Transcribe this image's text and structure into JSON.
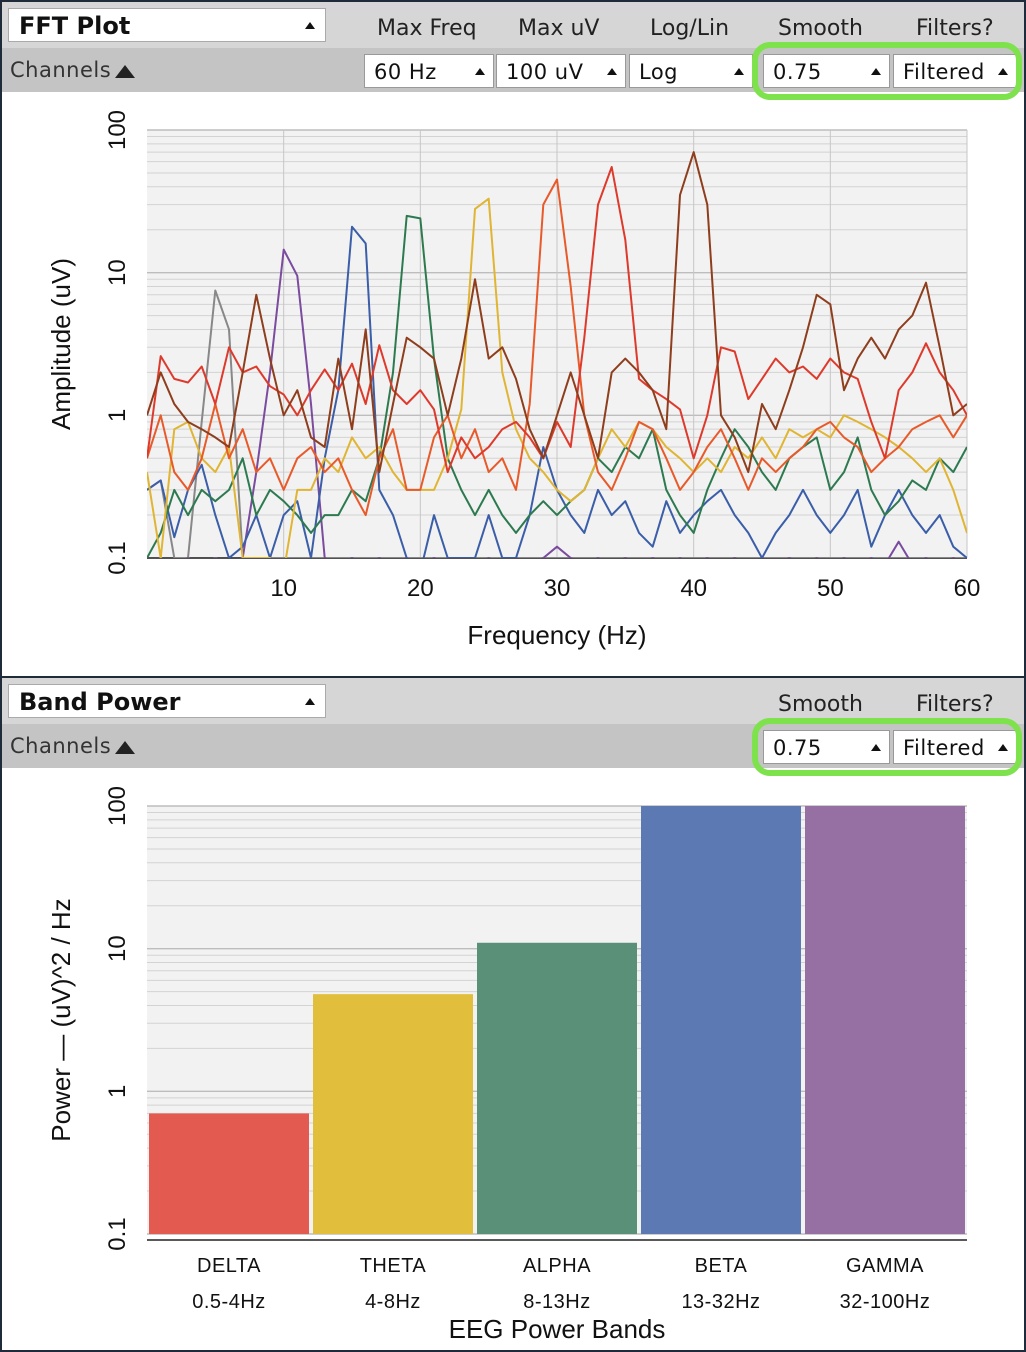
{
  "fft": {
    "widget_title": "FFT Plot",
    "channels_label": "Channels",
    "headers": {
      "max_freq": "Max Freq",
      "max_uv": "Max uV",
      "log_lin": "Log/Lin",
      "smooth": "Smooth",
      "filters": "Filters?"
    },
    "dropdowns": {
      "max_freq": "60 Hz",
      "max_uv": "100 uV",
      "log_lin": "Log",
      "smooth": "0.75",
      "filters": "Filtered"
    }
  },
  "band": {
    "widget_title": "Band Power",
    "channels_label": "Channels",
    "headers": {
      "smooth": "Smooth",
      "filters": "Filters?"
    },
    "dropdowns": {
      "smooth": "0.75",
      "filters": "Filtered"
    }
  },
  "colors": {
    "highlight": "#7ee24c",
    "plot_bg": "#f2f2f2",
    "titlebar": "#d6d6d6",
    "toolbar": "#c4c4c4"
  },
  "chart_data": [
    {
      "type": "line",
      "xlabel": "Frequency (Hz)",
      "ylabel": "Amplitude (uV)",
      "xlim": [
        0,
        60
      ],
      "ylim": [
        0.1,
        100
      ],
      "y_scale": "log",
      "grid": true,
      "x_ticks": [
        10,
        20,
        30,
        40,
        50,
        60
      ],
      "y_ticks": [
        0.1,
        1,
        10,
        100
      ],
      "y_tick_labels": [
        "0.1",
        "1",
        "10",
        "100"
      ],
      "x": [
        0,
        1,
        2,
        3,
        4,
        5,
        6,
        7,
        8,
        9,
        10,
        11,
        12,
        13,
        14,
        15,
        16,
        17,
        18,
        19,
        20,
        21,
        22,
        23,
        24,
        25,
        26,
        27,
        28,
        29,
        30,
        31,
        32,
        33,
        34,
        35,
        36,
        37,
        38,
        39,
        40,
        41,
        42,
        43,
        44,
        45,
        46,
        47,
        48,
        49,
        50,
        51,
        52,
        53,
        54,
        55,
        56,
        57,
        58,
        59,
        60
      ],
      "series": [
        {
          "color": "#888888",
          "values": [
            0.3,
            0.35,
            0.1,
            0.1,
            0.9,
            7.5,
            4.0,
            0.1,
            0.08,
            0.1,
            0.1,
            0.1,
            0.1,
            0.1,
            0.1,
            0.1,
            0.1,
            0.1,
            0.1,
            0.1,
            0.1,
            0.1,
            0.1,
            0.1,
            0.1,
            0.1,
            0.1,
            0.1,
            0.1,
            0.1,
            0.1,
            0.1,
            0.1,
            0.1,
            0.1,
            0.1,
            0.1,
            0.1,
            0.1,
            0.1,
            0.1,
            0.1,
            0.1,
            0.1,
            0.1,
            0.1,
            0.1,
            0.1,
            0.1,
            0.1,
            0.1,
            0.1,
            0.1,
            0.1,
            0.1,
            0.1,
            0.1,
            0.1,
            0.1,
            0.1,
            0.1
          ]
        },
        {
          "color": "#7b4b9e",
          "values": [
            0.09,
            0.1,
            0.09,
            0.1,
            0.09,
            0.1,
            0.09,
            0.1,
            0.4,
            2.0,
            14.5,
            9.5,
            1.2,
            0.1,
            0.09,
            0.1,
            0.09,
            0.1,
            0.09,
            0.1,
            0.09,
            0.1,
            0.09,
            0.1,
            0.09,
            0.1,
            0.09,
            0.1,
            0.09,
            0.1,
            0.12,
            0.1,
            0.09,
            0.1,
            0.09,
            0.1,
            0.09,
            0.1,
            0.09,
            0.1,
            0.09,
            0.1,
            0.09,
            0.1,
            0.09,
            0.1,
            0.09,
            0.1,
            0.09,
            0.1,
            0.09,
            0.1,
            0.09,
            0.1,
            0.09,
            0.13,
            0.09,
            0.1,
            0.09,
            0.1,
            0.09
          ]
        },
        {
          "color": "#3b5ea8",
          "values": [
            0.3,
            0.35,
            0.14,
            0.3,
            0.45,
            0.2,
            0.1,
            0.12,
            0.2,
            0.1,
            0.2,
            0.25,
            0.1,
            0.5,
            1.5,
            21.0,
            16.0,
            0.3,
            0.2,
            0.1,
            0.08,
            0.2,
            0.1,
            0.1,
            0.1,
            0.2,
            0.1,
            0.1,
            0.2,
            0.6,
            0.3,
            0.2,
            0.15,
            0.3,
            0.2,
            0.25,
            0.15,
            0.12,
            0.25,
            0.15,
            0.2,
            0.25,
            0.3,
            0.2,
            0.15,
            0.1,
            0.15,
            0.2,
            0.3,
            0.2,
            0.15,
            0.2,
            0.3,
            0.12,
            0.2,
            0.3,
            0.2,
            0.15,
            0.2,
            0.12,
            0.1
          ]
        },
        {
          "color": "#2e7a50",
          "values": [
            0.1,
            0.15,
            0.3,
            0.2,
            0.3,
            0.25,
            0.3,
            0.5,
            0.2,
            0.3,
            0.25,
            0.2,
            0.15,
            0.2,
            0.2,
            0.3,
            0.25,
            0.5,
            2.0,
            25.0,
            24.0,
            2.5,
            0.5,
            0.3,
            0.2,
            0.3,
            0.2,
            0.15,
            0.2,
            0.25,
            0.2,
            0.25,
            0.3,
            0.5,
            0.4,
            0.6,
            0.5,
            0.8,
            0.3,
            0.2,
            0.15,
            0.3,
            0.5,
            0.8,
            0.6,
            0.4,
            0.3,
            0.5,
            0.6,
            0.7,
            0.3,
            0.4,
            0.7,
            0.3,
            0.2,
            0.25,
            0.35,
            0.3,
            0.5,
            0.4,
            0.6
          ]
        },
        {
          "color": "#e0b533",
          "values": [
            0.4,
            0.1,
            0.8,
            0.9,
            0.5,
            0.4,
            0.6,
            0.1,
            0.1,
            0.1,
            0.08,
            0.3,
            0.3,
            0.5,
            0.4,
            0.7,
            0.5,
            0.6,
            0.4,
            0.3,
            0.3,
            0.3,
            0.5,
            1.1,
            28.0,
            33.0,
            2.0,
            0.8,
            0.5,
            0.4,
            0.3,
            0.25,
            0.3,
            0.5,
            0.8,
            0.6,
            0.9,
            0.8,
            0.6,
            0.5,
            0.4,
            0.5,
            0.4,
            0.6,
            0.5,
            0.7,
            0.5,
            0.8,
            0.7,
            0.8,
            0.7,
            1.0,
            0.9,
            0.8,
            0.7,
            0.6,
            0.5,
            0.4,
            0.5,
            0.3,
            0.15
          ]
        },
        {
          "color": "#e85a2a",
          "values": [
            0.5,
            1.0,
            0.4,
            0.3,
            0.5,
            1.2,
            0.5,
            0.8,
            0.4,
            0.5,
            0.3,
            0.5,
            0.6,
            0.4,
            0.5,
            0.3,
            0.2,
            0.5,
            0.8,
            0.3,
            0.3,
            0.7,
            1.0,
            0.5,
            0.8,
            0.4,
            0.5,
            0.3,
            1.2,
            30.0,
            45.0,
            8.0,
            1.0,
            0.4,
            0.3,
            0.5,
            0.9,
            0.8,
            0.5,
            0.3,
            0.4,
            0.6,
            0.8,
            0.5,
            0.3,
            0.5,
            0.4,
            0.5,
            0.6,
            0.8,
            0.9,
            0.7,
            0.6,
            0.4,
            0.5,
            0.6,
            0.8,
            0.9,
            1.0,
            0.7,
            1.0
          ]
        },
        {
          "color": "#de3a2c",
          "values": [
            0.5,
            2.6,
            1.8,
            1.7,
            2.2,
            1.2,
            3.0,
            2.0,
            2.2,
            1.6,
            1.4,
            1.0,
            1.5,
            2.1,
            1.5,
            2.3,
            1.2,
            3.1,
            1.5,
            1.2,
            1.5,
            1.1,
            0.4,
            0.7,
            0.5,
            0.6,
            0.8,
            0.9,
            0.7,
            0.5,
            0.9,
            0.6,
            3.5,
            30.0,
            55.0,
            17.0,
            1.8,
            1.5,
            1.3,
            1.1,
            0.5,
            1.0,
            3.0,
            2.8,
            1.3,
            1.8,
            2.5,
            2.0,
            2.2,
            1.8,
            2.5,
            2.0,
            1.8,
            0.9,
            0.5,
            1.5,
            2.0,
            3.2,
            2.0,
            1.5,
            1.0
          ]
        },
        {
          "color": "#8e3e1c",
          "values": [
            1.0,
            2.0,
            1.2,
            0.9,
            0.8,
            0.7,
            0.6,
            2.0,
            7.0,
            2.5,
            1.0,
            1.5,
            0.7,
            0.6,
            2.5,
            0.8,
            4.0,
            0.4,
            1.2,
            3.5,
            3.0,
            2.5,
            1.0,
            2.5,
            9.0,
            2.5,
            3.0,
            1.8,
            0.8,
            0.5,
            1.0,
            2.0,
            1.0,
            0.5,
            2.0,
            2.5,
            2.0,
            1.5,
            0.8,
            35.0,
            70.0,
            30.0,
            1.0,
            0.7,
            0.4,
            1.2,
            0.8,
            1.5,
            3.0,
            7.0,
            6.0,
            1.5,
            2.5,
            3.5,
            2.5,
            4.0,
            5.0,
            8.5,
            3.0,
            1.0,
            1.2
          ]
        }
      ]
    },
    {
      "type": "bar",
      "xlabel": "EEG Power Bands",
      "ylabel": "Power — (uV)^2 / Hz",
      "ylim": [
        0.1,
        100
      ],
      "y_scale": "log",
      "grid": true,
      "y_ticks": [
        0.1,
        1,
        10,
        100
      ],
      "y_tick_labels": [
        "0.1",
        "1",
        "10",
        "100"
      ],
      "categories": [
        "DELTA",
        "THETA",
        "ALPHA",
        "BETA",
        "GAMMA"
      ],
      "category_ranges": [
        "0.5-4Hz",
        "4-8Hz",
        "8-13Hz",
        "13-32Hz",
        "32-100Hz"
      ],
      "values": [
        0.7,
        4.8,
        11.0,
        100,
        100
      ],
      "colors": [
        "#e35a50",
        "#e1bf3c",
        "#5a8f78",
        "#5c79b4",
        "#9670a3"
      ]
    }
  ]
}
